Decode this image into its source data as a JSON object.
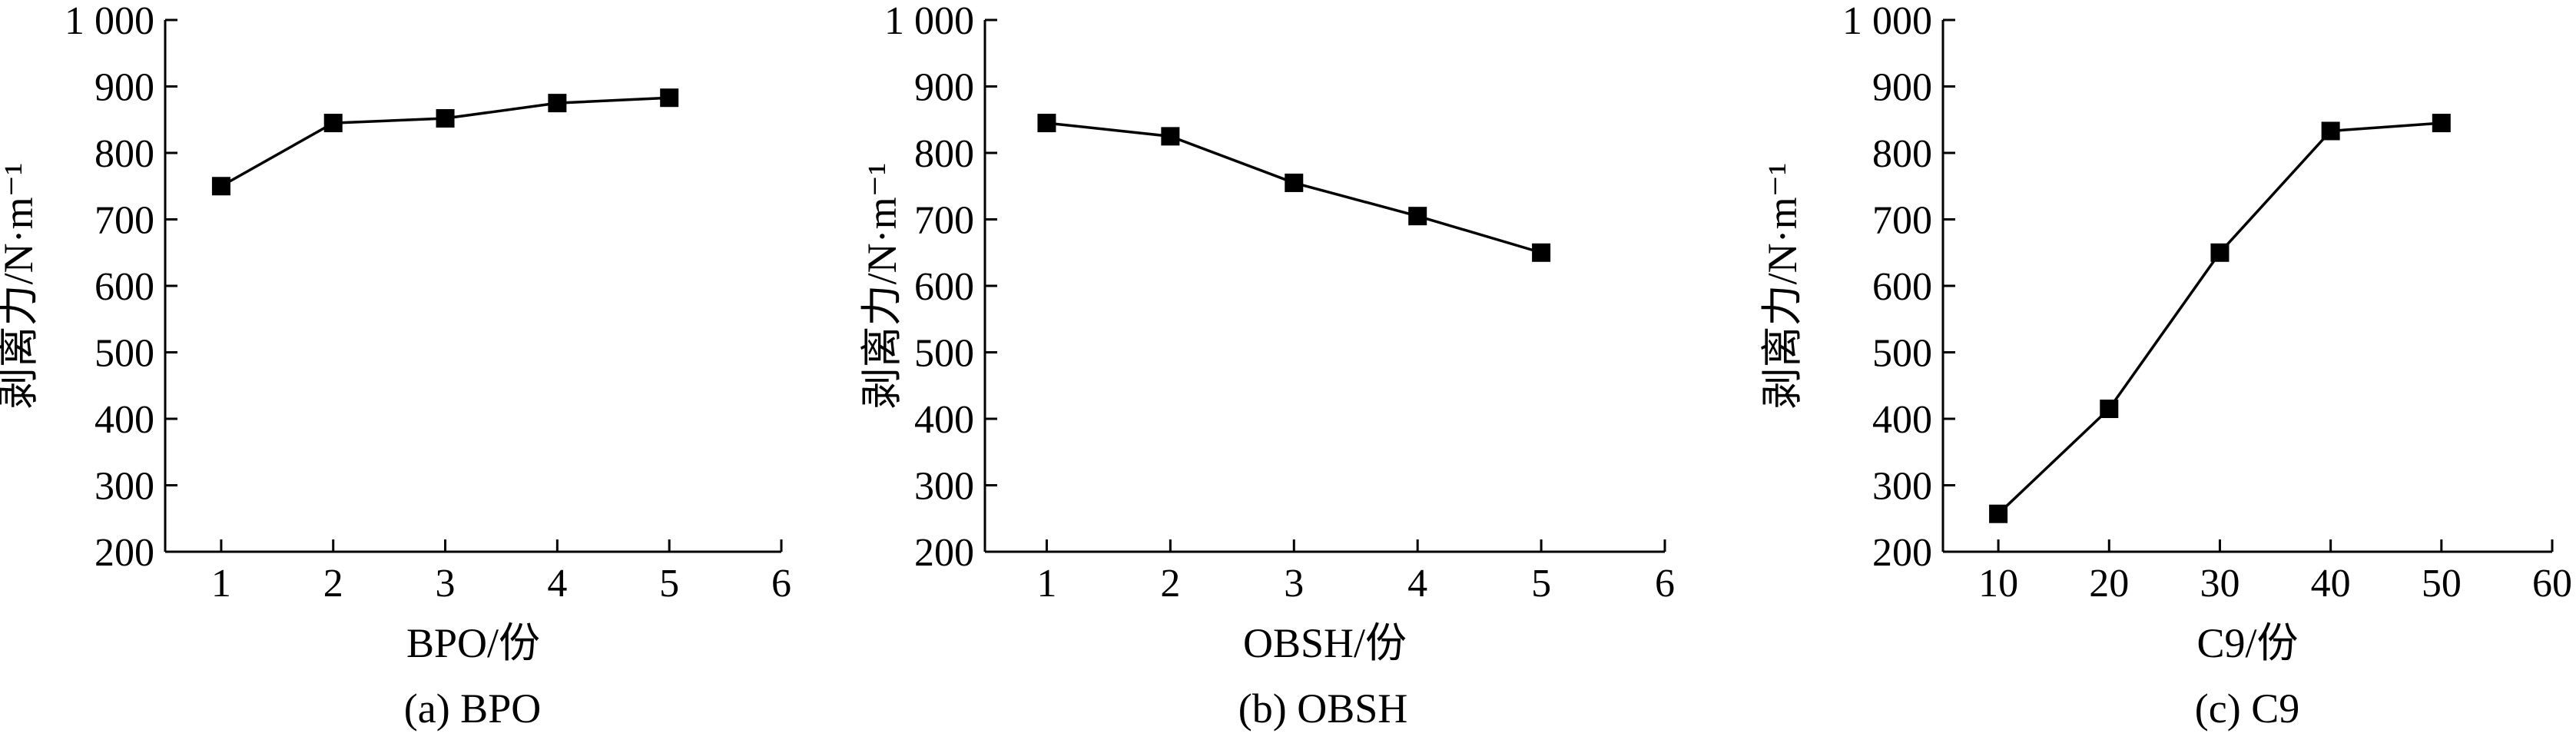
{
  "colors": {
    "line": "#000000",
    "marker": "#000000",
    "background": "#ffffff"
  },
  "chart_data": [
    {
      "type": "line",
      "panel_caption": "(a) BPO",
      "xlabel": "BPO/份",
      "ylabel": "剥离力/N·m⁻¹",
      "xlim": [
        0.5,
        6
      ],
      "ylim": [
        200,
        1000
      ],
      "x_ticks": [
        1,
        2,
        3,
        4,
        5,
        6
      ],
      "y_ticks": [
        200,
        300,
        400,
        500,
        600,
        700,
        800,
        900,
        1000
      ],
      "y_tick_labels": [
        "200",
        "300",
        "400",
        "500",
        "600",
        "700",
        "800",
        "900",
        "1 000"
      ],
      "marker": "square",
      "grid": false,
      "x": [
        1,
        2,
        3,
        4,
        5
      ],
      "values": [
        750,
        845,
        852,
        875,
        883
      ]
    },
    {
      "type": "line",
      "panel_caption": "(b) OBSH",
      "xlabel": "OBSH/份",
      "ylabel": "剥离力/N·m⁻¹",
      "xlim": [
        0.5,
        6
      ],
      "ylim": [
        200,
        1000
      ],
      "x_ticks": [
        1,
        2,
        3,
        4,
        5,
        6
      ],
      "y_ticks": [
        200,
        300,
        400,
        500,
        600,
        700,
        800,
        900,
        1000
      ],
      "y_tick_labels": [
        "200",
        "300",
        "400",
        "500",
        "600",
        "700",
        "800",
        "900",
        "1 000"
      ],
      "marker": "square",
      "grid": false,
      "x": [
        1,
        2,
        3,
        4,
        5
      ],
      "values": [
        845,
        825,
        755,
        705,
        650
      ]
    },
    {
      "type": "line",
      "panel_caption": "(c) C9",
      "xlabel": "C9/份",
      "ylabel": "剥离力/N·m⁻¹",
      "xlim": [
        5,
        60
      ],
      "ylim": [
        200,
        1000
      ],
      "x_ticks": [
        10,
        20,
        30,
        40,
        50,
        60
      ],
      "y_ticks": [
        200,
        300,
        400,
        500,
        600,
        700,
        800,
        900,
        1000
      ],
      "y_tick_labels": [
        "200",
        "300",
        "400",
        "500",
        "600",
        "700",
        "800",
        "900",
        "1 000"
      ],
      "marker": "square",
      "grid": false,
      "x": [
        10,
        20,
        30,
        40,
        50
      ],
      "values": [
        257,
        415,
        650,
        833,
        845
      ]
    }
  ]
}
